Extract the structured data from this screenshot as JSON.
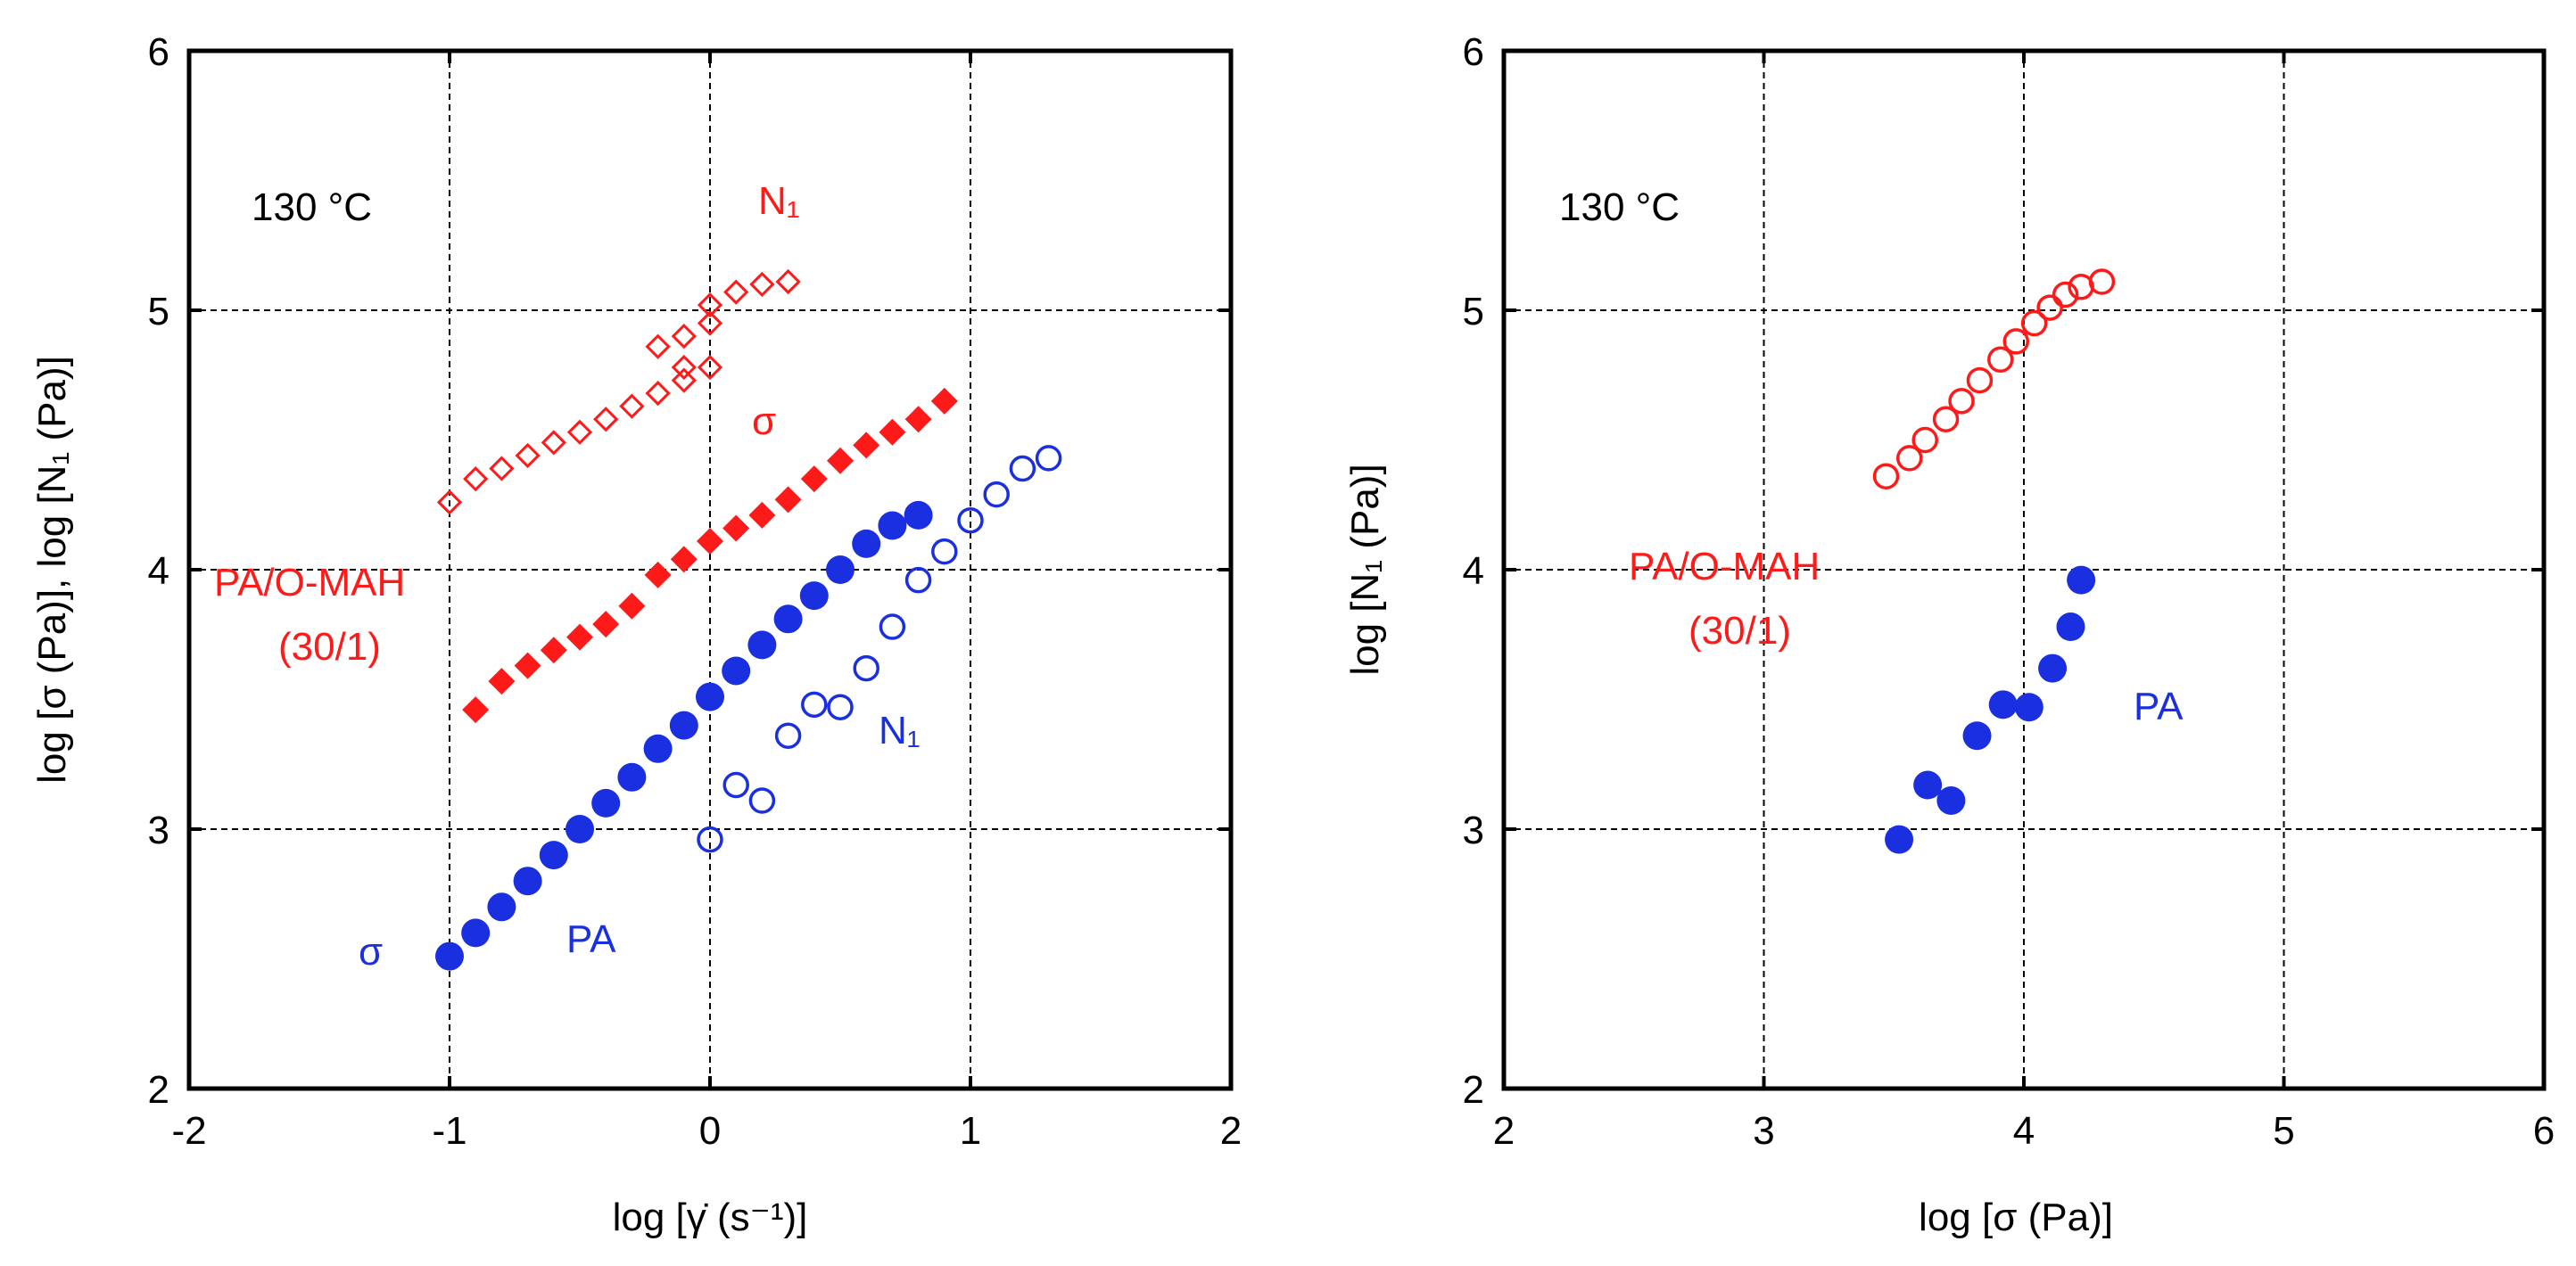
{
  "colors": {
    "red": "#ff1a1a",
    "blue": "#1a2fe0",
    "axis": "#000000"
  },
  "chart_data": [
    {
      "type": "scatter",
      "xlabel": "log [γ̇ (s⁻¹)]",
      "ylabel": "log  [σ (Pa)], log [N₁ (Pa)]",
      "xlim": [
        -2,
        2
      ],
      "ylim": [
        2,
        6
      ],
      "xticks": [
        "-2",
        "-1",
        "0",
        "1",
        "2"
      ],
      "yticks": [
        "2",
        "3",
        "4",
        "5",
        "6"
      ],
      "grid": true,
      "annotations": {
        "temp": "130 °C",
        "n1_red": "N₁",
        "sigma_red": "σ",
        "blend_line1": "PA/O-MAH",
        "blend_line2": "(30/1)",
        "n1_blue": "N₁",
        "sigma_blue": "σ",
        "pa": "PA"
      },
      "series": [
        {
          "marker": "diamond-open",
          "color": "red",
          "points": [
            [
              -1.0,
              4.26
            ],
            [
              -0.9,
              4.35
            ],
            [
              -0.8,
              4.39
            ],
            [
              -0.7,
              4.44
            ],
            [
              -0.6,
              4.49
            ],
            [
              -0.5,
              4.53
            ],
            [
              -0.4,
              4.58
            ],
            [
              -0.3,
              4.63
            ],
            [
              -0.2,
              4.68
            ],
            [
              -0.1,
              4.73
            ],
            [
              0.0,
              4.78
            ],
            [
              -0.1,
              4.78
            ],
            [
              0.0,
              4.95
            ],
            [
              -0.2,
              4.86
            ],
            [
              -0.1,
              4.9
            ],
            [
              0.0,
              5.02
            ],
            [
              0.1,
              5.07
            ],
            [
              0.2,
              5.1
            ],
            [
              0.3,
              5.11
            ]
          ]
        },
        {
          "marker": "diamond-filled",
          "color": "red",
          "points": [
            [
              -0.9,
              3.46
            ],
            [
              -0.8,
              3.57
            ],
            [
              -0.7,
              3.63
            ],
            [
              -0.6,
              3.69
            ],
            [
              -0.5,
              3.74
            ],
            [
              -0.4,
              3.79
            ],
            [
              -0.3,
              3.86
            ],
            [
              -0.2,
              3.98
            ],
            [
              -0.1,
              4.04
            ],
            [
              0.0,
              4.11
            ],
            [
              0.1,
              4.16
            ],
            [
              0.2,
              4.21
            ],
            [
              0.3,
              4.27
            ],
            [
              0.4,
              4.35
            ],
            [
              0.5,
              4.42
            ],
            [
              0.6,
              4.48
            ],
            [
              0.7,
              4.53
            ],
            [
              0.8,
              4.58
            ],
            [
              0.9,
              4.65
            ]
          ]
        },
        {
          "marker": "circle-filled",
          "color": "blue",
          "points": [
            [
              -1.0,
              2.51
            ],
            [
              -0.9,
              2.6
            ],
            [
              -0.8,
              2.7
            ],
            [
              -0.7,
              2.8
            ],
            [
              -0.6,
              2.9
            ],
            [
              -0.5,
              3.0
            ],
            [
              -0.4,
              3.1
            ],
            [
              -0.3,
              3.2
            ],
            [
              -0.2,
              3.31
            ],
            [
              -0.1,
              3.4
            ],
            [
              0.0,
              3.51
            ],
            [
              0.1,
              3.61
            ],
            [
              0.2,
              3.71
            ],
            [
              0.3,
              3.81
            ],
            [
              0.4,
              3.9
            ],
            [
              0.5,
              4.0
            ],
            [
              0.6,
              4.1
            ],
            [
              0.7,
              4.17
            ],
            [
              0.8,
              4.21
            ]
          ]
        },
        {
          "marker": "circle-open",
          "color": "blue",
          "points": [
            [
              0.0,
              2.96
            ],
            [
              0.1,
              3.17
            ],
            [
              0.2,
              3.11
            ],
            [
              0.3,
              3.36
            ],
            [
              0.4,
              3.48
            ],
            [
              0.5,
              3.47
            ],
            [
              0.6,
              3.62
            ],
            [
              0.7,
              3.78
            ],
            [
              0.8,
              3.96
            ],
            [
              0.9,
              4.07
            ],
            [
              1.0,
              4.19
            ],
            [
              1.1,
              4.29
            ],
            [
              1.2,
              4.39
            ],
            [
              1.3,
              4.43
            ]
          ]
        }
      ]
    },
    {
      "type": "scatter",
      "xlabel": "log  [σ (Pa)]",
      "ylabel": "log [N₁ (Pa)]",
      "xlim": [
        2,
        6
      ],
      "ylim": [
        2,
        6
      ],
      "xticks": [
        "2",
        "3",
        "4",
        "5",
        "6"
      ],
      "yticks": [
        "2",
        "3",
        "4",
        "5",
        "6"
      ],
      "grid": true,
      "annotations": {
        "temp": "130 °C",
        "blend_line1": "PA/O-MAH",
        "blend_line2": "(30/1)",
        "pa": "PA"
      },
      "series": [
        {
          "marker": "circle-open",
          "color": "red",
          "points": [
            [
              3.47,
              4.36
            ],
            [
              3.56,
              4.43
            ],
            [
              3.62,
              4.5
            ],
            [
              3.7,
              4.58
            ],
            [
              3.76,
              4.65
            ],
            [
              3.83,
              4.73
            ],
            [
              3.91,
              4.81
            ],
            [
              3.97,
              4.88
            ],
            [
              4.04,
              4.95
            ],
            [
              4.1,
              5.01
            ],
            [
              4.16,
              5.06
            ],
            [
              4.22,
              5.09
            ],
            [
              4.3,
              5.11
            ]
          ]
        },
        {
          "marker": "circle-filled",
          "color": "blue",
          "points": [
            [
              3.52,
              2.96
            ],
            [
              3.63,
              3.17
            ],
            [
              3.72,
              3.11
            ],
            [
              3.82,
              3.36
            ],
            [
              3.92,
              3.48
            ],
            [
              4.02,
              3.47
            ],
            [
              4.11,
              3.62
            ],
            [
              4.18,
              3.78
            ],
            [
              4.22,
              3.96
            ]
          ]
        }
      ]
    }
  ]
}
